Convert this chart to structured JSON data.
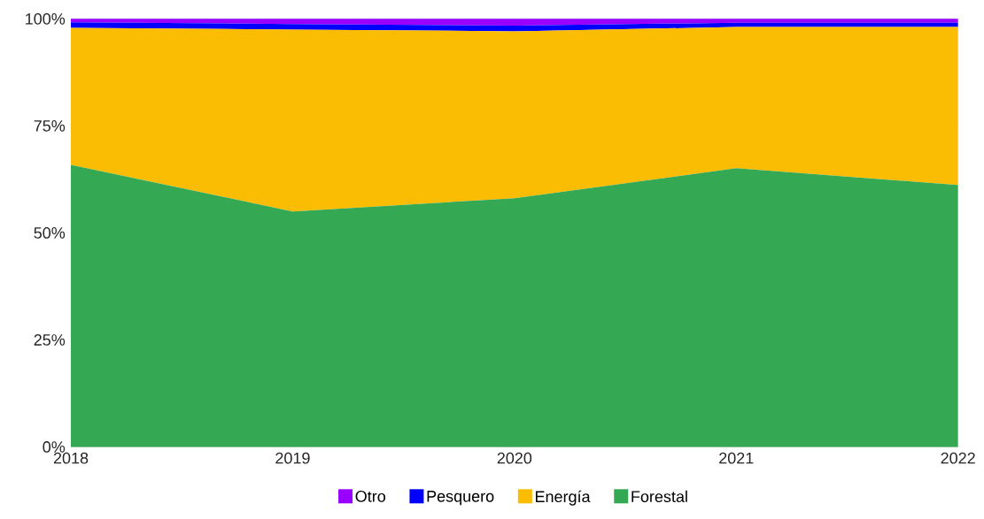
{
  "chart_data": {
    "type": "area",
    "stacked": true,
    "categories": [
      "2018",
      "2019",
      "2020",
      "2021",
      "2022"
    ],
    "series": [
      {
        "name": "Forestal",
        "color": "#34a853",
        "values": [
          65.9,
          55.0,
          58.1,
          65.1,
          61.2
        ]
      },
      {
        "name": "Energía",
        "color": "#fbbc04",
        "values": [
          32.0,
          42.5,
          39.0,
          33.0,
          36.9
        ]
      },
      {
        "name": "Pesquero",
        "color": "#0000ff",
        "values": [
          1.3,
          1.3,
          1.3,
          1.0,
          1.0
        ]
      },
      {
        "name": "Otro",
        "color": "#9900ff",
        "values": [
          0.8,
          1.2,
          1.6,
          0.9,
          0.9
        ]
      }
    ],
    "ylim": [
      0,
      100
    ],
    "yticks": [
      {
        "value": 0,
        "label": "0%"
      },
      {
        "value": 25,
        "label": "25%"
      },
      {
        "value": 50,
        "label": "50%"
      },
      {
        "value": 75,
        "label": "75%"
      },
      {
        "value": 100,
        "label": "100%"
      }
    ],
    "grid": "y",
    "legend": "bottom"
  }
}
